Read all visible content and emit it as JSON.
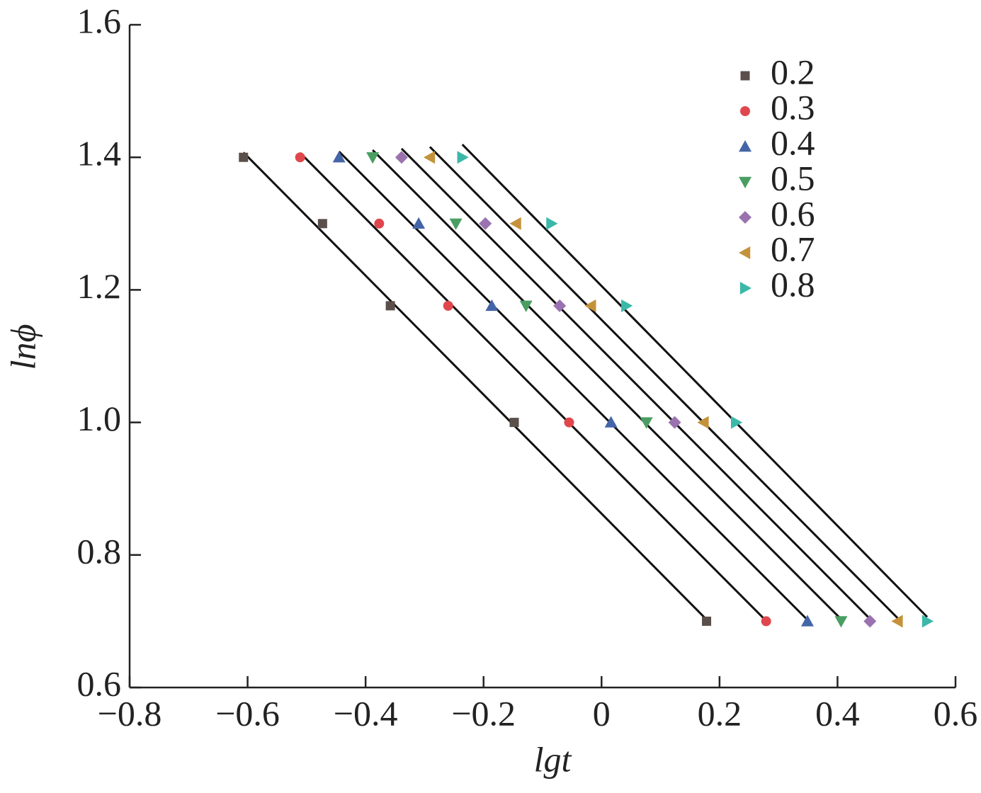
{
  "chart_data": {
    "type": "scatter",
    "xlabel": "lgt",
    "ylabel": "lnϕ",
    "xlim": [
      -0.8,
      0.6
    ],
    "ylim": [
      0.6,
      1.6
    ],
    "xticks": [
      {
        "value": -0.8,
        "label": "−0.8"
      },
      {
        "value": -0.6,
        "label": "−0.6"
      },
      {
        "value": -0.4,
        "label": "−0.4"
      },
      {
        "value": -0.2,
        "label": "−0.2"
      },
      0,
      0.2,
      0.4,
      0.6
    ],
    "yticks": [
      0.6,
      0.8,
      {
        "value": 1.0,
        "label": "1.0"
      },
      1.2,
      1.4,
      1.6
    ],
    "fit_lines": true,
    "series": [
      {
        "name": "0.2",
        "color": "#5a4f4a",
        "marker": "square",
        "x": [
          -0.607,
          -0.473,
          -0.358,
          -0.148,
          0.178
        ],
        "values": [
          1.4,
          1.3,
          1.176,
          1.0,
          0.7
        ]
      },
      {
        "name": "0.3",
        "color": "#e0474c",
        "marker": "circle",
        "x": [
          -0.511,
          -0.377,
          -0.26,
          -0.055,
          0.279
        ],
        "values": [
          1.4,
          1.3,
          1.176,
          1.0,
          0.7
        ]
      },
      {
        "name": "0.4",
        "color": "#4466a8",
        "marker": "triangle-up",
        "x": [
          -0.445,
          -0.31,
          -0.186,
          0.016,
          0.349
        ],
        "values": [
          1.4,
          1.3,
          1.176,
          1.0,
          0.7
        ]
      },
      {
        "name": "0.5",
        "color": "#4a9e62",
        "marker": "triangle-down",
        "x": [
          -0.388,
          -0.247,
          -0.128,
          0.076,
          0.406
        ],
        "values": [
          1.4,
          1.3,
          1.176,
          1.0,
          0.7
        ]
      },
      {
        "name": "0.6",
        "color": "#9b72b0",
        "marker": "diamond",
        "x": [
          -0.339,
          -0.197,
          -0.071,
          0.124,
          0.455
        ],
        "values": [
          1.4,
          1.3,
          1.176,
          1.0,
          0.7
        ]
      },
      {
        "name": "0.7",
        "color": "#c4923a",
        "marker": "triangle-left",
        "x": [
          -0.291,
          -0.145,
          -0.018,
          0.173,
          0.502
        ],
        "values": [
          1.4,
          1.3,
          1.176,
          1.0,
          0.7
        ]
      },
      {
        "name": "0.8",
        "color": "#3bb8a8",
        "marker": "triangle-right",
        "x": [
          -0.236,
          -0.085,
          0.042,
          0.228,
          0.552
        ],
        "values": [
          1.4,
          1.3,
          1.176,
          1.0,
          0.7
        ]
      }
    ]
  }
}
